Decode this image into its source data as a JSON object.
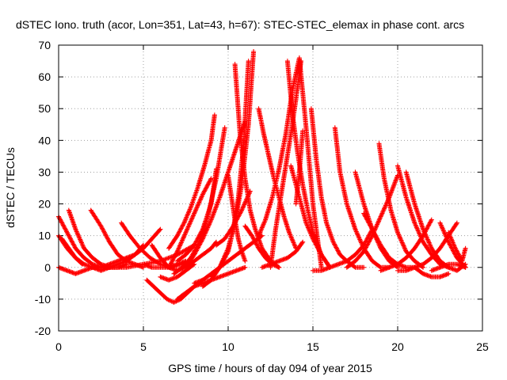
{
  "chart_data": {
    "type": "scatter",
    "title": "dSTEC Iono. truth (acor, Lon=351, Lat=43, h=67): STEC-STEC_elemax in phase cont. arcs",
    "xlabel": "GPS time / hours of day 094 of year 2015",
    "ylabel": "dSTEC  / TECUs",
    "xlim": [
      0,
      25
    ],
    "ylim": [
      -20,
      70
    ],
    "xticks": [
      0,
      5,
      10,
      15,
      20,
      25
    ],
    "yticks": [
      -20,
      -10,
      0,
      10,
      20,
      30,
      40,
      50,
      60,
      70
    ],
    "grid": true,
    "marker": "+",
    "color": "#ff0000",
    "series": [
      {
        "x": [
          0.0,
          0.5,
          1.0,
          1.5,
          2.0,
          2.5,
          3.0
        ],
        "y": [
          16,
          11,
          6,
          3,
          1,
          0,
          0
        ]
      },
      {
        "x": [
          0.6,
          1.0,
          1.5,
          2.0,
          2.5,
          3.0,
          3.5,
          4.0
        ],
        "y": [
          18,
          12,
          6,
          3,
          1,
          0,
          0,
          1
        ]
      },
      {
        "x": [
          0.0,
          0.5,
          1.0,
          1.5,
          2.0,
          2.5,
          3.0
        ],
        "y": [
          10,
          6,
          3,
          1,
          0,
          -1,
          0
        ]
      },
      {
        "x": [
          0.0,
          0.5,
          1.0,
          1.5,
          2.0,
          2.5,
          3.0,
          3.5,
          4.0,
          4.5,
          5.0
        ],
        "y": [
          0,
          -1,
          -2,
          -1,
          0,
          0,
          0,
          1,
          2,
          4,
          7
        ]
      },
      {
        "x": [
          0.2,
          0.6,
          1.0,
          1.4
        ],
        "y": [
          9,
          6,
          3,
          1
        ]
      },
      {
        "x": [
          1.9,
          2.5,
          3.0,
          3.5,
          4.0,
          4.5,
          5.0
        ],
        "y": [
          18,
          13,
          8,
          4,
          2,
          1,
          0
        ]
      },
      {
        "x": [
          2.0,
          3.0,
          4.0,
          5.0,
          6.0,
          7.0,
          8.0
        ],
        "y": [
          0,
          0,
          0,
          1,
          2,
          4,
          7
        ]
      },
      {
        "x": [
          2.5,
          3.0,
          3.5,
          4.0,
          4.5,
          5.0,
          5.5,
          6.0
        ],
        "y": [
          0,
          1,
          2,
          3,
          4,
          6,
          9,
          12
        ]
      },
      {
        "x": [
          3.7,
          4.2,
          4.8,
          5.4,
          6.0,
          6.6,
          7.2,
          7.8
        ],
        "y": [
          14,
          10,
          6,
          3,
          1,
          0,
          1,
          2
        ]
      },
      {
        "x": [
          5.0,
          5.5,
          6.0,
          6.5,
          7.0,
          7.5
        ],
        "y": [
          1,
          0,
          0,
          0,
          1,
          2
        ]
      },
      {
        "x": [
          5.2,
          5.6,
          6.0,
          6.4,
          6.8,
          7.2,
          7.6,
          8.0,
          8.5
        ],
        "y": [
          -4,
          -6,
          -8,
          -10,
          -11,
          -10,
          -8,
          -6,
          -4
        ]
      },
      {
        "x": [
          5.5,
          6.0,
          6.5,
          7.0,
          7.5,
          8.0,
          8.5,
          9.0,
          9.3
        ],
        "y": [
          7,
          3,
          0,
          -1,
          0,
          2,
          4,
          6,
          8
        ]
      },
      {
        "x": [
          6.0,
          6.5,
          7.0,
          7.5,
          8.0
        ],
        "y": [
          -3,
          -4,
          -3,
          -1,
          1
        ]
      },
      {
        "x": [
          6.5,
          7.0,
          7.5,
          8.0,
          8.5,
          9.0
        ],
        "y": [
          0,
          5,
          11,
          17,
          23,
          28
        ]
      },
      {
        "x": [
          7.5,
          8.0,
          8.5,
          9.0,
          9.5,
          10.0,
          10.5,
          11.0
        ],
        "y": [
          0,
          4,
          9,
          15,
          22,
          30,
          38,
          46
        ]
      },
      {
        "x": [
          7.0,
          7.5,
          8.0,
          8.5,
          9.0,
          9.3
        ],
        "y": [
          2,
          4,
          7,
          12,
          20,
          31
        ]
      },
      {
        "x": [
          6.5,
          7.0,
          7.4,
          7.8,
          8.2,
          8.6,
          9.0,
          9.2
        ],
        "y": [
          6,
          10,
          14,
          19,
          25,
          32,
          40,
          48
        ]
      },
      {
        "x": [
          6.8,
          7.3,
          7.8,
          8.3,
          8.8,
          9.3,
          9.8
        ],
        "y": [
          -2,
          0,
          3,
          8,
          16,
          28,
          44
        ]
      },
      {
        "x": [
          7.0,
          7.5,
          8.0,
          8.5,
          9.0,
          9.5,
          10.0,
          10.5,
          11.0
        ],
        "y": [
          -10,
          -8,
          -6,
          -5,
          -4,
          -3,
          -2,
          -1,
          0
        ]
      },
      {
        "x": [
          8.0,
          8.5,
          9.0,
          9.5,
          10.0,
          10.5,
          11.0,
          11.5,
          12.0
        ],
        "y": [
          -5,
          -4,
          -2,
          0,
          2,
          4,
          6,
          8,
          10
        ]
      },
      {
        "x": [
          9.0,
          9.5,
          10.0,
          10.3,
          10.6,
          10.9,
          11.2
        ],
        "y": [
          -3,
          0,
          5,
          12,
          22,
          38,
          65
        ]
      },
      {
        "x": [
          9.3,
          9.8,
          10.3,
          10.8,
          11.3
        ],
        "y": [
          7,
          9,
          13,
          18,
          24
        ]
      },
      {
        "x": [
          8.5,
          9.0,
          9.5,
          10.0,
          10.4,
          10.8,
          11.2,
          11.5
        ],
        "y": [
          -6,
          -4,
          0,
          6,
          14,
          26,
          45,
          68
        ]
      },
      {
        "x": [
          10.0,
          10.2,
          10.4,
          10.6,
          10.8,
          11.0
        ],
        "y": [
          29,
          22,
          15,
          9,
          5,
          2
        ]
      },
      {
        "x": [
          10.4,
          10.7,
          11.0,
          11.3,
          11.6,
          12.0,
          12.5,
          13.0
        ],
        "y": [
          64,
          42,
          28,
          18,
          12,
          6,
          2,
          0
        ]
      },
      {
        "x": [
          11.0,
          11.4,
          11.8,
          12.2,
          12.6,
          13.0
        ],
        "y": [
          13,
          10,
          6,
          3,
          1,
          0
        ]
      },
      {
        "x": [
          11.8,
          12.1,
          12.4,
          12.7,
          13.0,
          13.3,
          13.6,
          14.0
        ],
        "y": [
          50,
          42,
          35,
          28,
          22,
          16,
          11,
          6
        ]
      },
      {
        "x": [
          11.8,
          12.2,
          12.6,
          13.0,
          13.4,
          13.8,
          14.2,
          14.6,
          15.0,
          15.5
        ],
        "y": [
          10,
          15,
          22,
          31,
          42,
          56,
          66,
          44,
          20,
          0
        ]
      },
      {
        "x": [
          12.5,
          12.8,
          13.1,
          13.4,
          13.7,
          14.0,
          14.3
        ],
        "y": [
          0,
          12,
          22,
          32,
          42,
          53,
          65
        ]
      },
      {
        "x": [
          13.5,
          13.8,
          14.1,
          14.4,
          14.7,
          15.0,
          15.5,
          16.0
        ],
        "y": [
          65,
          48,
          36,
          26,
          18,
          11,
          4,
          0
        ]
      },
      {
        "x": [
          13.7,
          14.0,
          14.3,
          14.6,
          15.0,
          15.5,
          16.0
        ],
        "y": [
          32,
          26,
          20,
          14,
          9,
          4,
          0
        ]
      },
      {
        "x": [
          14.0,
          14.2,
          14.4
        ],
        "y": [
          20,
          30,
          43
        ]
      },
      {
        "x": [
          12.0,
          12.5,
          13.0,
          13.5,
          14.0,
          14.4
        ],
        "y": [
          0,
          1,
          2,
          3,
          5,
          8
        ]
      },
      {
        "x": [
          14.9,
          15.2,
          15.5,
          15.8,
          16.2,
          16.6,
          17.0,
          17.5,
          18.0
        ],
        "y": [
          50,
          34,
          22,
          14,
          8,
          4,
          2,
          0,
          0
        ]
      },
      {
        "x": [
          15.0,
          15.5,
          16.0,
          16.5,
          17.0,
          17.5,
          18.0,
          18.5
        ],
        "y": [
          -1,
          -1,
          0,
          1,
          2,
          4,
          7,
          12
        ]
      },
      {
        "x": [
          16.3,
          16.6,
          17.0,
          17.5,
          18.0,
          18.5,
          19.0,
          19.5
        ],
        "y": [
          44,
          30,
          20,
          12,
          6,
          2,
          0,
          0
        ]
      },
      {
        "x": [
          17.0,
          17.5,
          18.0,
          18.5,
          19.0,
          19.5,
          20.0
        ],
        "y": [
          0,
          2,
          5,
          10,
          16,
          22,
          29
        ]
      },
      {
        "x": [
          17.5,
          18.0,
          18.5,
          19.0,
          19.5,
          20.0
        ],
        "y": [
          30,
          20,
          12,
          6,
          2,
          0
        ]
      },
      {
        "x": [
          18.0,
          18.5,
          19.0,
          19.5,
          20.0,
          20.5,
          21.0
        ],
        "y": [
          17,
          12,
          7,
          3,
          1,
          0,
          0
        ]
      },
      {
        "x": [
          18.9,
          19.2,
          19.6,
          20.0,
          20.5,
          21.0,
          21.5
        ],
        "y": [
          39,
          28,
          18,
          11,
          5,
          2,
          0
        ]
      },
      {
        "x": [
          19.0,
          19.5,
          20.0,
          20.5,
          21.0,
          21.5,
          22.0
        ],
        "y": [
          -1,
          0,
          1,
          3,
          6,
          10,
          15
        ]
      },
      {
        "x": [
          20.0,
          20.5,
          21.0,
          21.5,
          22.0,
          22.5,
          23.0
        ],
        "y": [
          32,
          22,
          14,
          8,
          4,
          1,
          0
        ]
      },
      {
        "x": [
          20.5,
          21.0,
          21.5,
          22.0,
          22.5,
          23.0,
          23.5,
          24.0
        ],
        "y": [
          30,
          20,
          12,
          6,
          2,
          0,
          -1,
          1
        ]
      },
      {
        "x": [
          21.0,
          21.5,
          22.0,
          22.5,
          23.0
        ],
        "y": [
          0,
          -2,
          -3,
          -3,
          -2
        ]
      },
      {
        "x": [
          20.0,
          20.5,
          21.0,
          21.5,
          22.0,
          22.5,
          23.0,
          23.5
        ],
        "y": [
          -1,
          -1,
          0,
          1,
          3,
          6,
          10,
          14
        ]
      },
      {
        "x": [
          22.5,
          23.0,
          23.5,
          24.0
        ],
        "y": [
          14,
          8,
          3,
          0
        ]
      },
      {
        "x": [
          23.0,
          23.4,
          23.8,
          24.0
        ],
        "y": [
          11,
          6,
          2,
          6
        ]
      },
      {
        "x": [
          22.0,
          22.5,
          23.0,
          23.5,
          24.0
        ],
        "y": [
          -1,
          0,
          1,
          1,
          0
        ]
      }
    ]
  }
}
